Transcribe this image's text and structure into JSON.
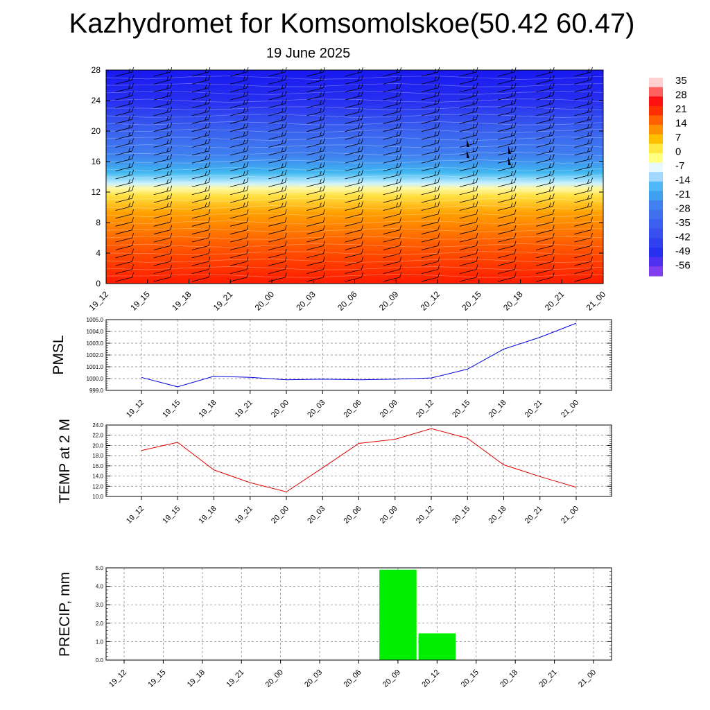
{
  "title": "Kazhydromet for Komsomolskoe(50.42 60.47)",
  "subtitle": "19 June 2025",
  "chart_data": [
    {
      "type": "heatmap",
      "description_key": "cross-section",
      "x": [
        "19_12",
        "19_15",
        "19_18",
        "19_21",
        "20_00",
        "20_03",
        "20_06",
        "20_09",
        "20_12",
        "20_15",
        "20_18",
        "20_21",
        "21_00"
      ],
      "y_ticks": [
        "0",
        "4",
        "8",
        "12",
        "16",
        "20",
        "24",
        "28"
      ],
      "ylim": [
        0,
        28
      ],
      "colorbar_labels": [
        "35",
        "28",
        "21",
        "14",
        "7",
        "0",
        "-7",
        "-14",
        "-21",
        "-28",
        "-35",
        "-42",
        "-49",
        "-56"
      ],
      "colors": {
        "warm": "#ff2000",
        "mid": "#ffff60",
        "cool": "#40b0f0",
        "cold": "#3020f0",
        "coldest": "#8040f0"
      },
      "overlay": "wind-barbs"
    },
    {
      "type": "line",
      "ylabel": "PMSL",
      "x": [
        "19_12",
        "19_15",
        "19_18",
        "19_21",
        "20_00",
        "20_03",
        "20_06",
        "20_09",
        "20_12",
        "20_15",
        "20_18",
        "20_21",
        "21_00"
      ],
      "y": [
        1000.1,
        999.3,
        1000.2,
        1000.1,
        999.9,
        999.95,
        999.9,
        999.95,
        1000.05,
        1000.8,
        1002.5,
        1003.5,
        1004.7
      ],
      "ylim": [
        999.0,
        1005.0
      ],
      "y_ticks": [
        "999.0",
        "1000.0",
        "1001.0",
        "1002.0",
        "1003.0",
        "1004.0",
        "1005.0"
      ],
      "color": "#0000e0"
    },
    {
      "type": "line",
      "ylabel": "TEMP at 2 M",
      "x": [
        "19_12",
        "19_15",
        "19_18",
        "19_21",
        "20_00",
        "20_03",
        "20_06",
        "20_09",
        "20_12",
        "20_15",
        "20_18",
        "20_21",
        "21_00"
      ],
      "y": [
        19.0,
        20.6,
        15.2,
        12.7,
        10.9,
        15.6,
        20.4,
        21.2,
        23.3,
        21.4,
        16.2,
        13.9,
        11.8
      ],
      "ylim": [
        10.0,
        24.0
      ],
      "y_ticks": [
        "10.0",
        "12.0",
        "14.0",
        "16.0",
        "18.0",
        "20.0",
        "22.0",
        "24.0"
      ],
      "color": "#e00000"
    },
    {
      "type": "bar",
      "ylabel": "PRECIP, mm",
      "categories": [
        "19_12",
        "19_15",
        "19_18",
        "19_21",
        "20_00",
        "20_03",
        "20_06",
        "20_09",
        "20_12",
        "20_15",
        "20_18",
        "20_21",
        "21_00"
      ],
      "values": [
        0,
        0,
        0,
        0,
        0,
        0,
        0,
        4.9,
        1.45,
        0,
        0,
        0,
        0
      ],
      "ylim": [
        0.0,
        5.0
      ],
      "y_ticks": [
        "0.0",
        "1.0",
        "2.0",
        "3.0",
        "4.0",
        "5.0"
      ],
      "color": "#00ee00"
    }
  ]
}
